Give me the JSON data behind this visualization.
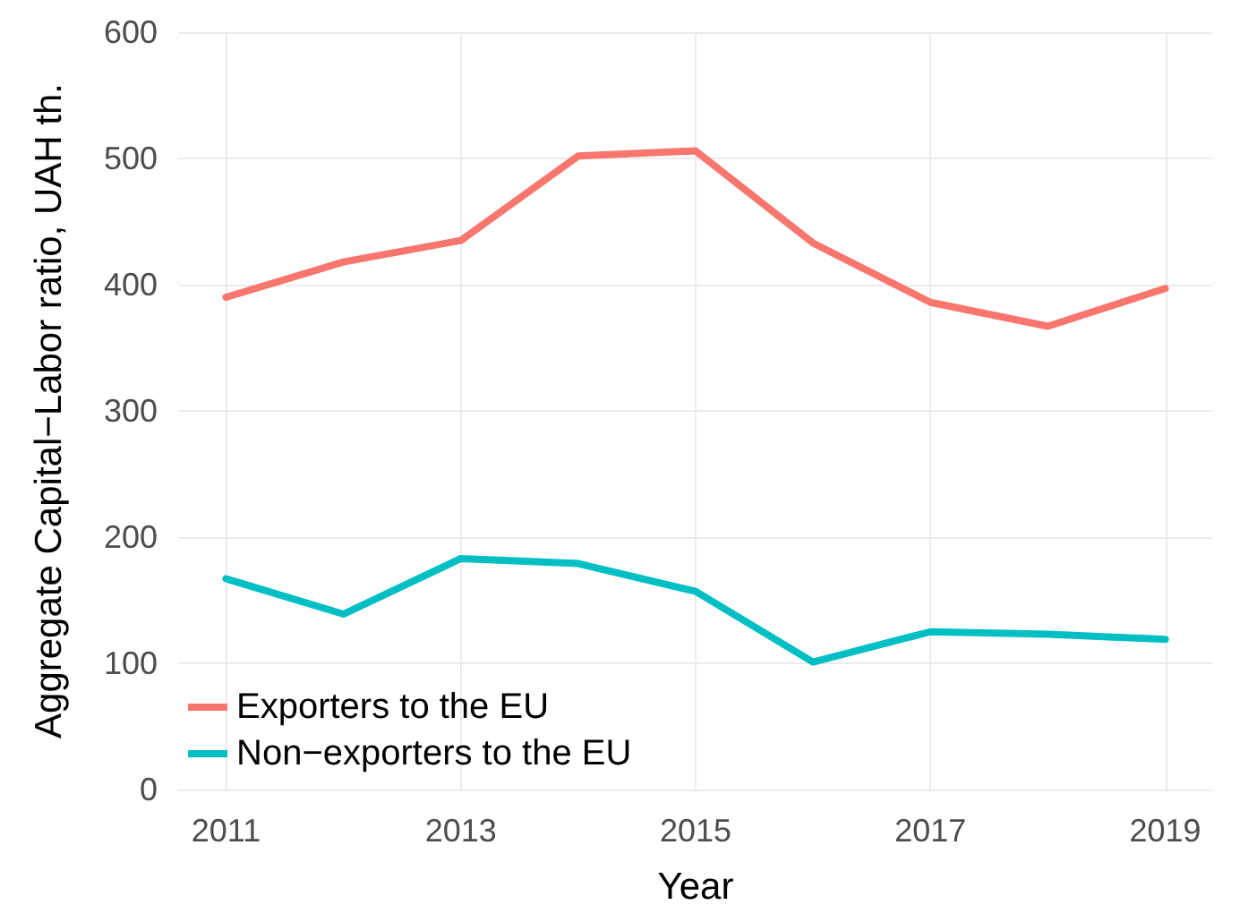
{
  "chart_data": {
    "type": "line",
    "xlabel": "Year",
    "ylabel": "Aggregate Capital−Labor ratio, UAH th.",
    "x": [
      2011,
      2012,
      2013,
      2014,
      2015,
      2016,
      2017,
      2018,
      2019
    ],
    "series": [
      {
        "name": "Exporters to the EU",
        "color": "#f8766d",
        "values": [
          390,
          418,
          435,
          502,
          506,
          433,
          386,
          367,
          397
        ]
      },
      {
        "name": "Non−exporters to the EU",
        "color": "#00bfc4",
        "values": [
          167,
          139,
          183,
          179,
          157,
          101,
          125,
          123,
          119
        ]
      }
    ],
    "xlim": [
      2010.6,
      2019.4
    ],
    "xticks": [
      2011,
      2013,
      2015,
      2017,
      2019
    ],
    "ylim": [
      0,
      600
    ],
    "yticks": [
      0,
      100,
      200,
      300,
      400,
      500,
      600
    ],
    "grid": true,
    "legend": "bottom left",
    "marker": "none",
    "line_style": "solid"
  }
}
